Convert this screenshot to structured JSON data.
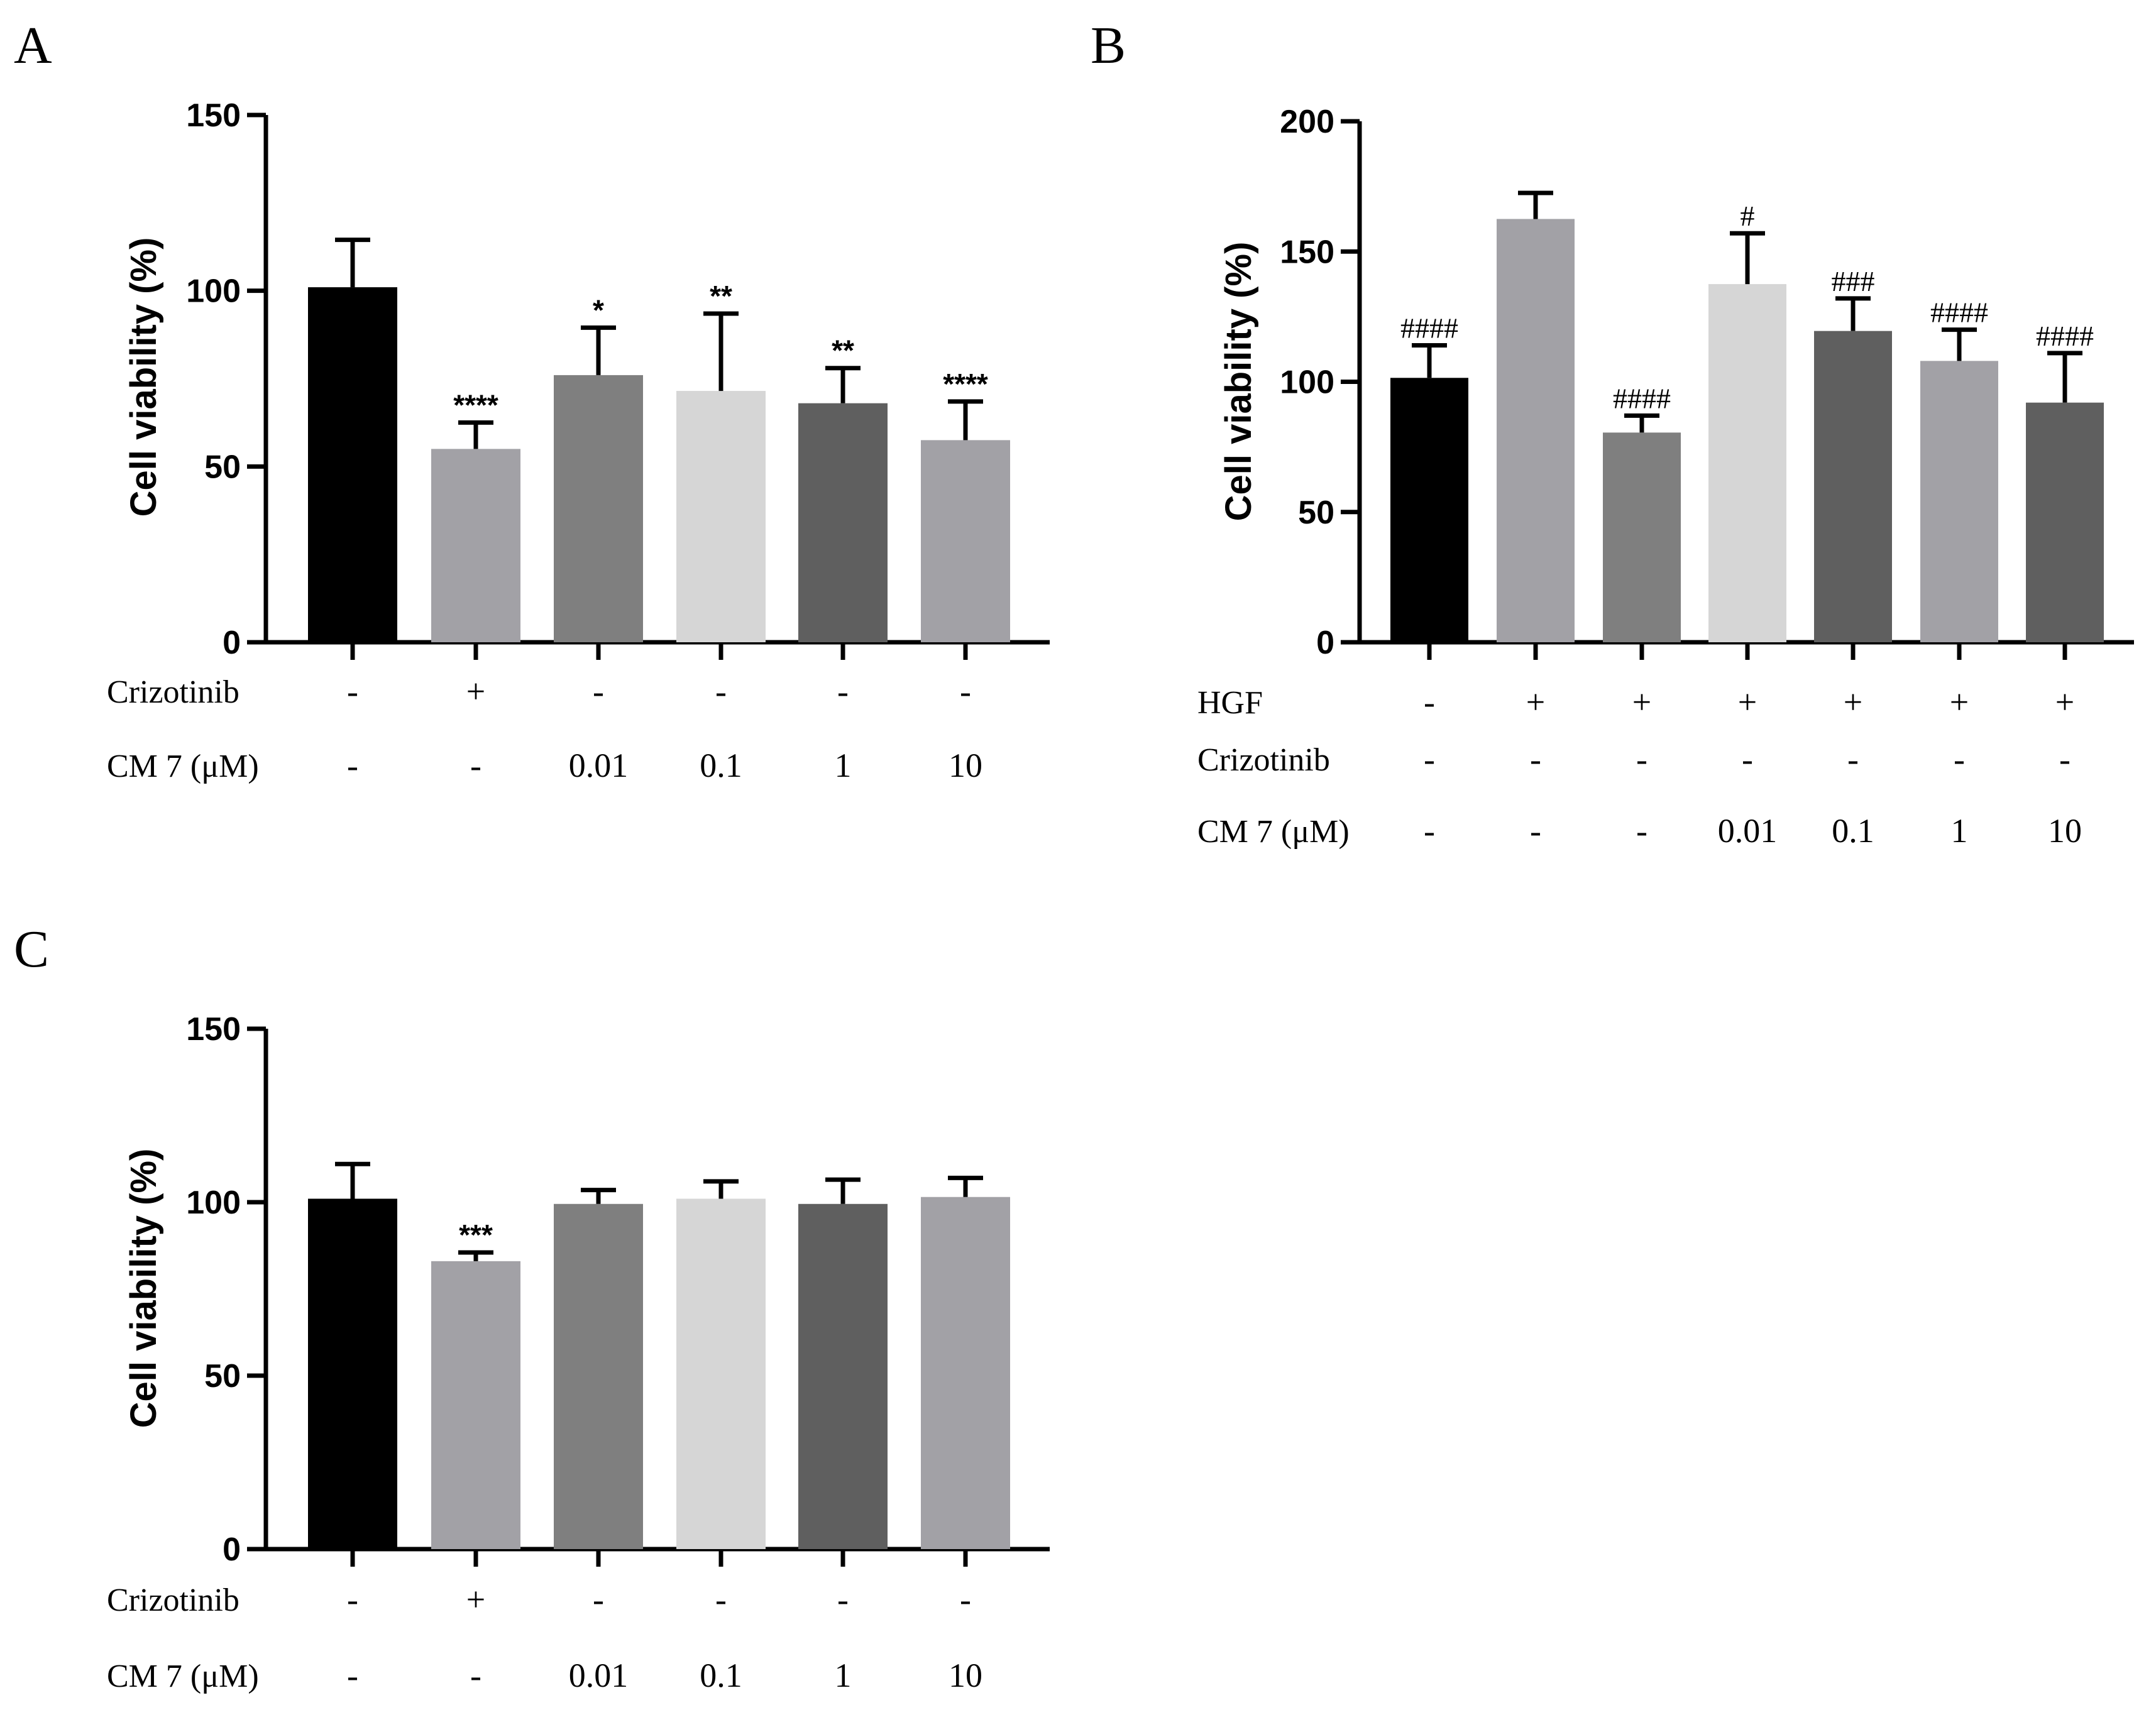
{
  "chart_data": [
    {
      "panel": "A",
      "type": "bar",
      "ylabel": "Cell viability (%)",
      "ylim": [
        0,
        150
      ],
      "yticks": [
        "0",
        "50",
        "100",
        "150"
      ],
      "values": [
        101,
        55,
        76,
        71.5,
        68,
        57.5
      ],
      "errors": [
        13.5,
        7.5,
        13.5,
        22,
        10,
        11
      ],
      "colors": [
        "#000000",
        "#a2a1a6",
        "#7f7f7f",
        "#d6d6d6",
        "#5f5f5f",
        "#a2a1a6"
      ],
      "significance": [
        "",
        "****",
        "*",
        "**",
        "**",
        "****"
      ],
      "conditions": [
        {
          "label": "Crizotinib",
          "values": [
            "-",
            "+",
            "-",
            "-",
            "-",
            "-"
          ]
        },
        {
          "label": "CM 7 (μM)",
          "values": [
            "-",
            "-",
            "0.01",
            "0.1",
            "1",
            "10"
          ]
        }
      ]
    },
    {
      "panel": "B",
      "type": "bar",
      "ylabel": "Cell viability (%)",
      "ylim": [
        0,
        200
      ],
      "yticks": [
        "0",
        "50",
        "100",
        "150",
        "200"
      ],
      "values": [
        101.5,
        162.5,
        80.5,
        137.5,
        119.5,
        108,
        92
      ],
      "errors": [
        12.5,
        10,
        6.5,
        19.5,
        12.5,
        12,
        19
      ],
      "colors": [
        "#000000",
        "#a2a1a6",
        "#7f7f7f",
        "#d6d6d6",
        "#5f5f5f",
        "#a2a1a6",
        "#5f5f5f"
      ],
      "significance": [
        "####",
        "",
        "####",
        "#",
        "###",
        "####",
        "####"
      ],
      "conditions": [
        {
          "label": "HGF",
          "values": [
            "-",
            "+",
            "+",
            "+",
            "+",
            "+",
            "+"
          ]
        },
        {
          "label": "Crizotinib",
          "values": [
            "-",
            "-",
            "-",
            "-",
            "-",
            "-",
            "-"
          ]
        },
        {
          "label": "CM 7 (μM)",
          "values": [
            "-",
            "-",
            "-",
            "0.01",
            "0.1",
            "1",
            "10"
          ]
        }
      ]
    },
    {
      "panel": "C",
      "type": "bar",
      "ylabel": "Cell viability (%)",
      "ylim": [
        0,
        150
      ],
      "yticks": [
        "0",
        "50",
        "100",
        "150"
      ],
      "values": [
        101,
        83,
        99.5,
        101,
        99.5,
        101.5
      ],
      "errors": [
        10,
        2.5,
        4,
        5,
        7,
        5.5
      ],
      "colors": [
        "#000000",
        "#a2a1a6",
        "#7f7f7f",
        "#d6d6d6",
        "#5f5f5f",
        "#a2a1a6"
      ],
      "significance": [
        "",
        "***",
        "",
        "",
        "",
        ""
      ],
      "conditions": [
        {
          "label": "Crizotinib",
          "values": [
            "-",
            "+",
            "-",
            "-",
            "-",
            "-"
          ]
        },
        {
          "label": "CM 7 (μM)",
          "values": [
            "-",
            "-",
            "0.01",
            "0.1",
            "1",
            "10"
          ]
        }
      ]
    }
  ]
}
